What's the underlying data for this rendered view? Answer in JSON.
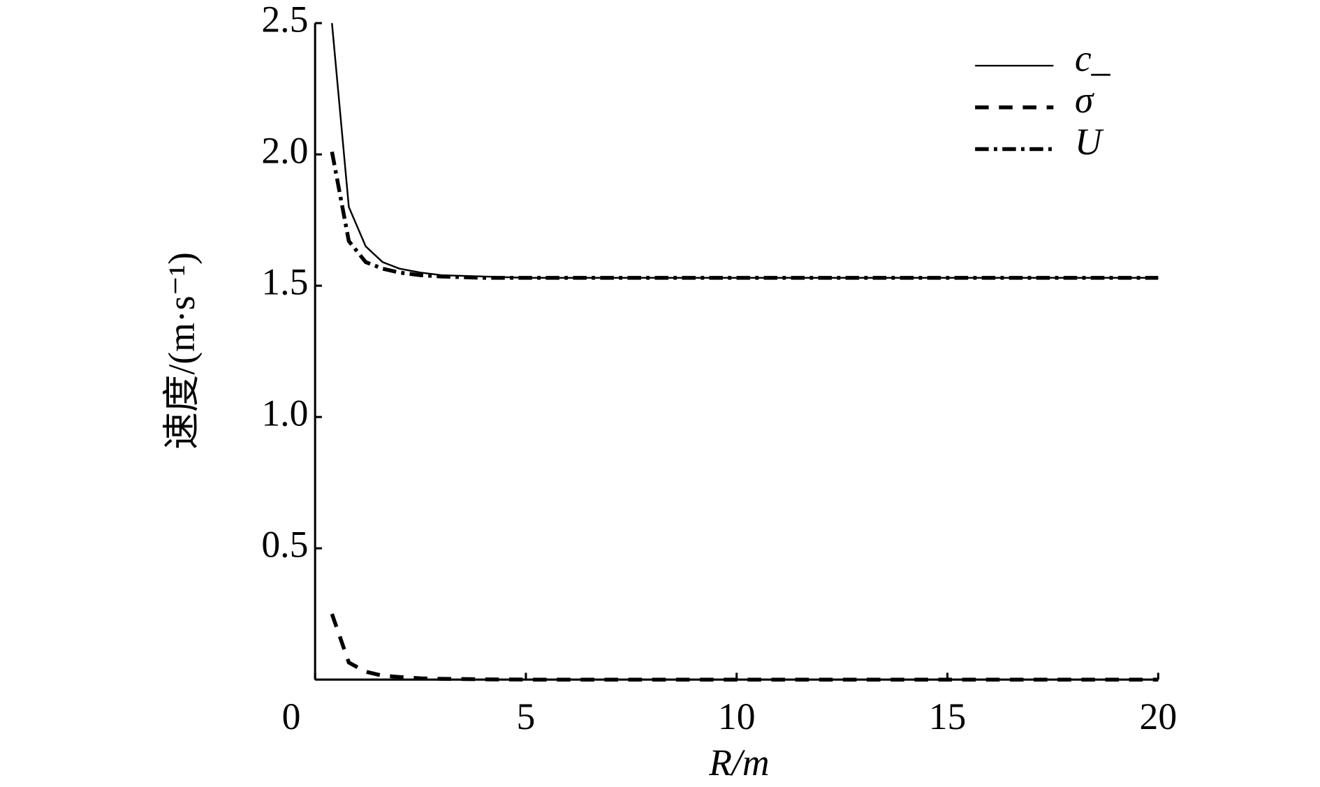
{
  "chart_data": {
    "type": "line",
    "x_label": "R/m",
    "y_label": "速度/(m·s⁻¹)",
    "xlim": [
      0,
      20
    ],
    "xticks": [
      0,
      5,
      10,
      15,
      20
    ],
    "ylim": [
      0,
      2.5
    ],
    "yticks": [
      0.5,
      {
        "value": 1.0,
        "label": "1.0"
      },
      1.5,
      {
        "value": 2.0,
        "label": "2.0"
      },
      2.5
    ],
    "legend": "upper right",
    "x": [
      0.4,
      0.8,
      1.2,
      1.6,
      2.0,
      2.5,
      3,
      4,
      5,
      7,
      10,
      15,
      20
    ],
    "series": [
      {
        "name": "c_",
        "color": "#000000",
        "style": "solid",
        "values": [
          2.5,
          1.8,
          1.65,
          1.59,
          1.565,
          1.55,
          1.54,
          1.535,
          1.53,
          1.53,
          1.53,
          1.53,
          1.53
        ]
      },
      {
        "name": "σ",
        "color": "#000000",
        "style": "dashed",
        "values": [
          0.25,
          0.065,
          0.03,
          0.015,
          0.01,
          0.005,
          0.003,
          0.001,
          0,
          0,
          0,
          0,
          0
        ]
      },
      {
        "name": "U",
        "color": "#000000",
        "style": "dashdot",
        "values": [
          2.01,
          1.67,
          1.59,
          1.565,
          1.55,
          1.54,
          1.535,
          1.53,
          1.53,
          1.53,
          1.53,
          1.53,
          1.53
        ]
      }
    ]
  }
}
